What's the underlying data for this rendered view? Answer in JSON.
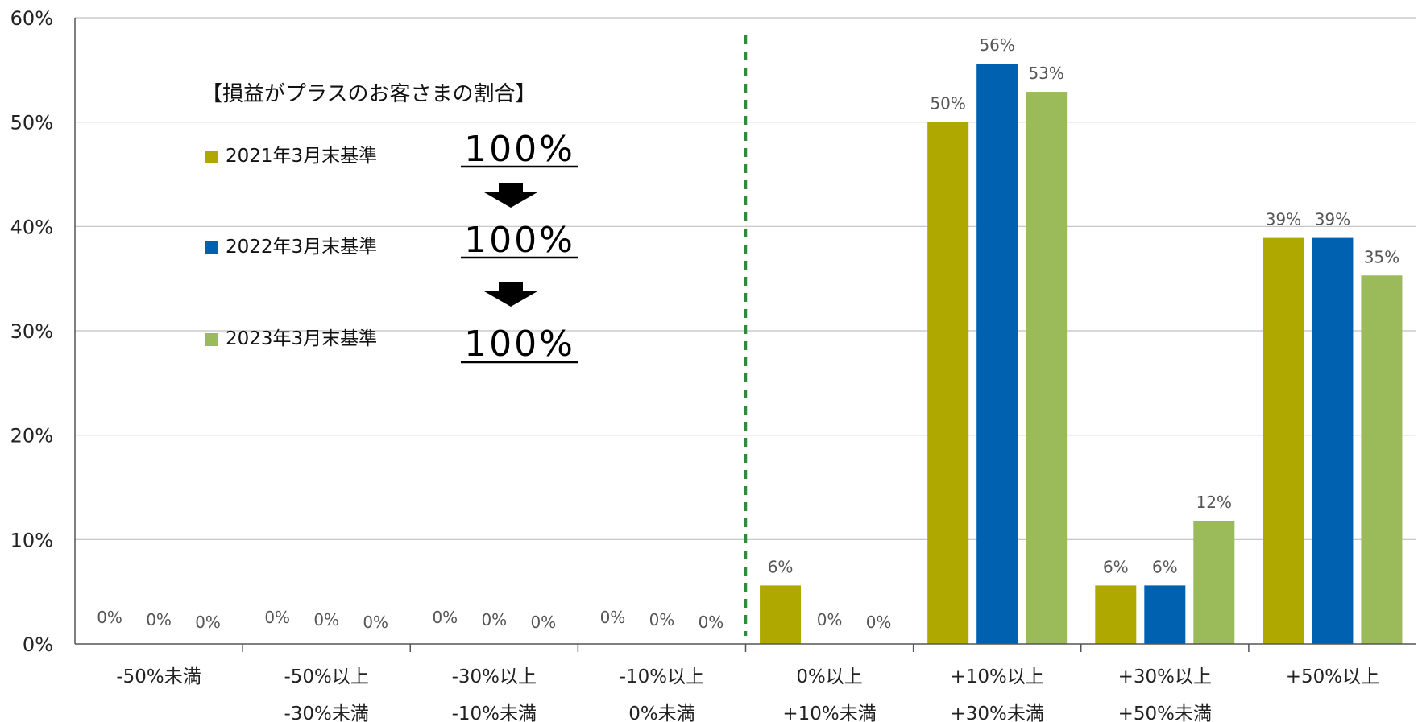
{
  "colors": {
    "series_2021": "#AFA800",
    "series_2022": "#0061B0",
    "series_2023": "#9BBA59",
    "divider": "#2E8B3A",
    "grid": "#C0C0C0",
    "axis": "#555555",
    "text": "#333333"
  },
  "legend_box": {
    "title": "【損益がプラスのお客さまの割合】",
    "entries": [
      {
        "label": "2021年3月末基準",
        "value": "100%"
      },
      {
        "label": "2022年3月末基準",
        "value": "100%"
      },
      {
        "label": "2023年3月末基準",
        "value": "100%"
      }
    ]
  },
  "chart_data": {
    "type": "bar",
    "categories": [
      [
        "-50%未満",
        ""
      ],
      [
        "-50%以上",
        "-30%未満"
      ],
      [
        "-30%以上",
        "-10%未満"
      ],
      [
        "-10%以上",
        "0%未満"
      ],
      [
        "0%以上",
        "+10%未満"
      ],
      [
        "+10%以上",
        "+30%未満"
      ],
      [
        "+30%以上",
        "+50%未満"
      ],
      [
        "+50%以上",
        ""
      ]
    ],
    "series": [
      {
        "name": "2021年3月末基準",
        "values": [
          0,
          0,
          0,
          0,
          5.6,
          50,
          5.6,
          38.9
        ],
        "labels": [
          "0%",
          "0%",
          "0%",
          "0%",
          "6%",
          "50%",
          "6%",
          "39%"
        ]
      },
      {
        "name": "2022年3月末基準",
        "values": [
          0,
          0,
          0,
          0,
          0,
          55.6,
          5.6,
          38.9
        ],
        "labels": [
          "0%",
          "0%",
          "0%",
          "0%",
          "0%",
          "56%",
          "6%",
          "39%"
        ]
      },
      {
        "name": "2023年3月末基準",
        "values": [
          0,
          0,
          0,
          0,
          0,
          52.9,
          11.8,
          35.3
        ],
        "labels": [
          "0%",
          "0%",
          "0%",
          "0%",
          "0%",
          "53%",
          "12%",
          "35%"
        ]
      }
    ],
    "y_ticks": [
      "0%",
      "10%",
      "20%",
      "30%",
      "40%",
      "50%",
      "60%"
    ],
    "ylim": [
      0,
      60
    ],
    "grid": true,
    "divider_after_category": 3
  }
}
